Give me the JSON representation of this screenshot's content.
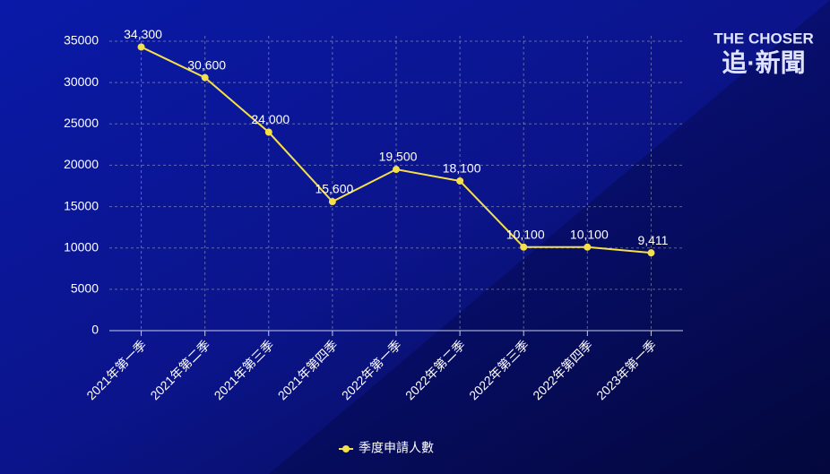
{
  "chart_data": {
    "type": "line",
    "categories": [
      "2021年第一季",
      "2021年第二季",
      "2021年第三季",
      "2021年第四季",
      "2022年第一季",
      "2022年第二季",
      "2022年第三季",
      "2022年第四季",
      "2023年第一季"
    ],
    "series": [
      {
        "name": "季度申請人數",
        "color": "#f5e04a",
        "values": [
          34300,
          30600,
          24000,
          15600,
          19500,
          18100,
          10100,
          10100,
          9411
        ],
        "value_labels": [
          "34,300",
          "30,600",
          "24,000",
          "15,600",
          "19,500",
          "18,100",
          "10,100",
          "10,100",
          "9,411"
        ]
      }
    ],
    "ylim": [
      0,
      35000
    ],
    "yticks": [
      0,
      5000,
      10000,
      15000,
      20000,
      25000,
      30000,
      35000
    ],
    "grid": true,
    "legend": "bottom"
  },
  "logo": {
    "line1": "THE CHOSER",
    "line2": "追·新聞"
  }
}
